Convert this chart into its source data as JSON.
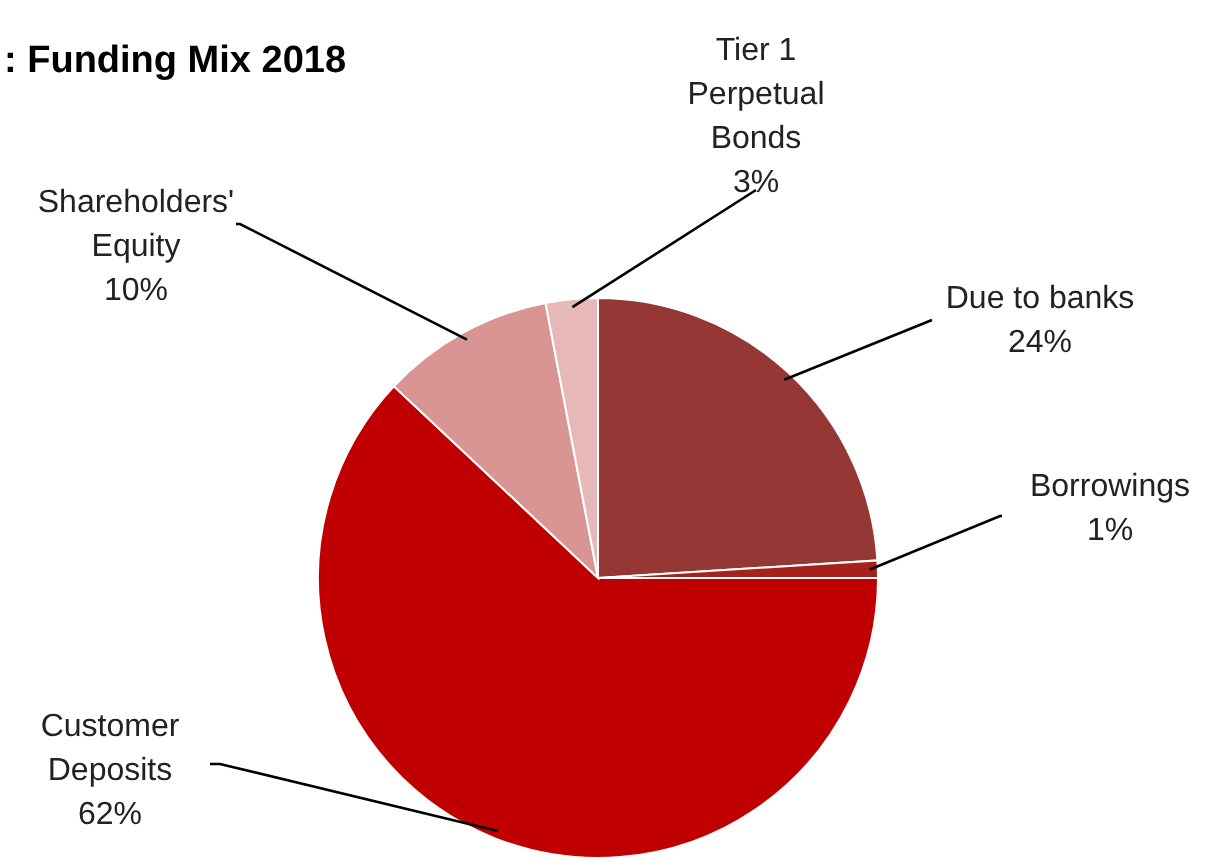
{
  "chart_data": {
    "type": "pie",
    "title": ": Funding Mix 2018",
    "categories": [
      "Due to banks",
      "Borrowings",
      "Customer Deposits",
      "Shareholders' Equity",
      "Tier 1 Perpetual Bonds"
    ],
    "values": [
      24,
      1,
      62,
      10,
      3
    ],
    "value_labels": [
      "24%",
      "1%",
      "62%",
      "10%",
      "3%"
    ],
    "colors": [
      "#953735",
      "#a8201a",
      "#c00000",
      "#d99594",
      "#e6b9b8"
    ]
  }
}
